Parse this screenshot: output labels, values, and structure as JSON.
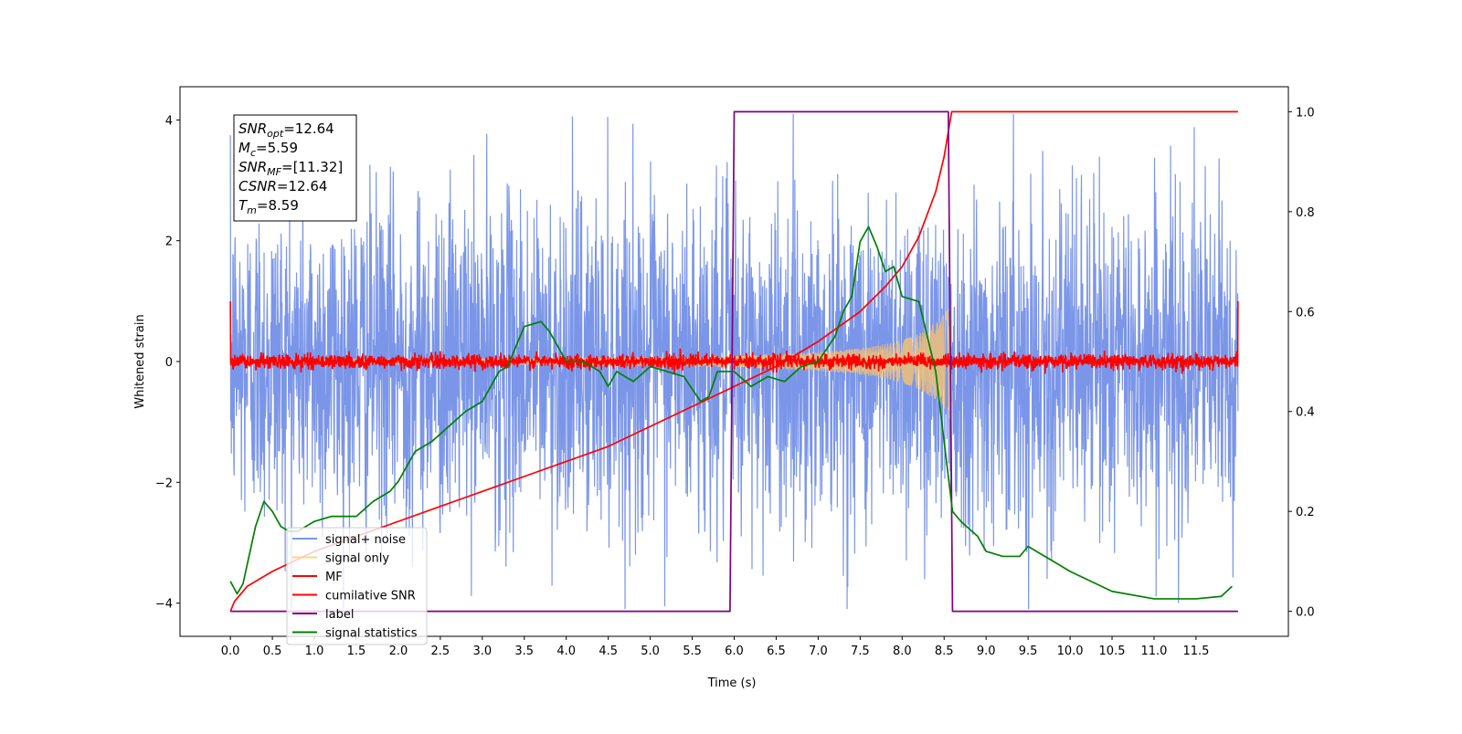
{
  "chart_data": {
    "type": "line",
    "title": "",
    "xlabel": "Time (s)",
    "ylabel_left": "Whitened strain",
    "ylabel_right": "",
    "xlim": [
      -0.6,
      12.6
    ],
    "ylim_left": [
      -4.55,
      4.55
    ],
    "ylim_right": [
      -0.05,
      1.05
    ],
    "xticks": [
      "0.0",
      "0.5",
      "1.0",
      "1.5",
      "2.0",
      "2.5",
      "3.0",
      "3.5",
      "4.0",
      "4.5",
      "5.0",
      "5.5",
      "6.0",
      "6.5",
      "7.0",
      "7.5",
      "8.0",
      "8.5",
      "9.0",
      "9.5",
      "10.0",
      "10.5",
      "11.0",
      "11.5"
    ],
    "yticks_left": [
      "−4",
      "−2",
      "0",
      "2",
      "4"
    ],
    "yticks_right": [
      "0.0",
      "0.2",
      "0.4",
      "0.6",
      "0.8",
      "1.0"
    ],
    "grid": false,
    "legend_position": "lower-left",
    "annotation": {
      "lines": [
        {
          "sym": "SNR",
          "sub": "opt",
          "val": "=12.64"
        },
        {
          "sym": "M",
          "sub": "c",
          "val": "=5.59"
        },
        {
          "sym": "SNR",
          "sub": "MF",
          "val": "=[11.32]"
        },
        {
          "sym": "CSNR",
          "sub": "",
          "val": "=12.64"
        },
        {
          "sym": "T",
          "sub": "m",
          "val": "=8.59"
        }
      ]
    },
    "series": [
      {
        "name": "signal+ noise",
        "color": "#7b96e8",
        "axis": "left",
        "kind": "noise",
        "x_range": [
          0,
          12
        ],
        "amplitude_sd": 1.0,
        "peak_max": 4.1,
        "peak_min": -4.1
      },
      {
        "name": "signal only",
        "color": "#ffc56b",
        "axis": "left",
        "kind": "chirp",
        "x_range": [
          0,
          8.59
        ],
        "envelope_start": 0.02,
        "envelope_end": 1.0
      },
      {
        "name": "MF",
        "color": "#ff0000",
        "axis": "left",
        "kind": "noise",
        "x_range": [
          0,
          12
        ],
        "amplitude_sd": 0.06,
        "edge_value": 1.0
      },
      {
        "name": "cumilative SNR",
        "color": "#ff0000",
        "axis": "right",
        "x": [
          0.0,
          0.05,
          0.2,
          0.5,
          1.0,
          1.5,
          2.0,
          2.5,
          3.0,
          3.5,
          4.0,
          4.5,
          5.0,
          5.5,
          6.0,
          6.5,
          7.0,
          7.5,
          7.8,
          8.0,
          8.2,
          8.4,
          8.5,
          8.59,
          8.6,
          12.0
        ],
        "y": [
          0.0,
          0.02,
          0.05,
          0.08,
          0.12,
          0.15,
          0.18,
          0.21,
          0.24,
          0.27,
          0.3,
          0.33,
          0.37,
          0.41,
          0.45,
          0.49,
          0.54,
          0.6,
          0.65,
          0.69,
          0.75,
          0.84,
          0.91,
          1.0,
          1.0,
          1.0
        ]
      },
      {
        "name": "label",
        "color": "#800080",
        "axis": "right",
        "x": [
          0.0,
          5.95,
          6.0,
          8.55,
          8.6,
          12.0
        ],
        "y": [
          0.0,
          0.0,
          1.0,
          1.0,
          0.0,
          0.0
        ]
      },
      {
        "name": "signal statistics",
        "color": "#008000",
        "axis": "right",
        "x": [
          0.0,
          0.08,
          0.15,
          0.3,
          0.4,
          0.5,
          0.6,
          0.7,
          0.8,
          1.0,
          1.2,
          1.5,
          1.7,
          1.9,
          2.0,
          2.2,
          2.4,
          2.6,
          2.8,
          3.0,
          3.2,
          3.3,
          3.5,
          3.7,
          3.8,
          4.0,
          4.2,
          4.4,
          4.5,
          4.6,
          4.8,
          5.0,
          5.2,
          5.4,
          5.6,
          5.7,
          5.8,
          6.0,
          6.2,
          6.4,
          6.6,
          6.8,
          7.0,
          7.2,
          7.3,
          7.4,
          7.5,
          7.6,
          7.7,
          7.8,
          7.9,
          8.0,
          8.2,
          8.4,
          8.6,
          8.7,
          8.9,
          9.0,
          9.2,
          9.4,
          9.5,
          9.8,
          10.0,
          10.5,
          11.0,
          11.5,
          11.8,
          11.93
        ],
        "y": [
          0.06,
          0.035,
          0.055,
          0.17,
          0.22,
          0.2,
          0.17,
          0.16,
          0.16,
          0.18,
          0.19,
          0.19,
          0.22,
          0.24,
          0.26,
          0.32,
          0.34,
          0.37,
          0.4,
          0.42,
          0.48,
          0.49,
          0.57,
          0.58,
          0.56,
          0.5,
          0.5,
          0.48,
          0.45,
          0.48,
          0.46,
          0.49,
          0.48,
          0.47,
          0.42,
          0.43,
          0.48,
          0.48,
          0.45,
          0.47,
          0.46,
          0.49,
          0.5,
          0.55,
          0.6,
          0.63,
          0.74,
          0.77,
          0.73,
          0.68,
          0.69,
          0.63,
          0.62,
          0.48,
          0.2,
          0.18,
          0.15,
          0.12,
          0.11,
          0.11,
          0.13,
          0.1,
          0.08,
          0.04,
          0.025,
          0.025,
          0.03,
          0.05
        ]
      }
    ]
  }
}
